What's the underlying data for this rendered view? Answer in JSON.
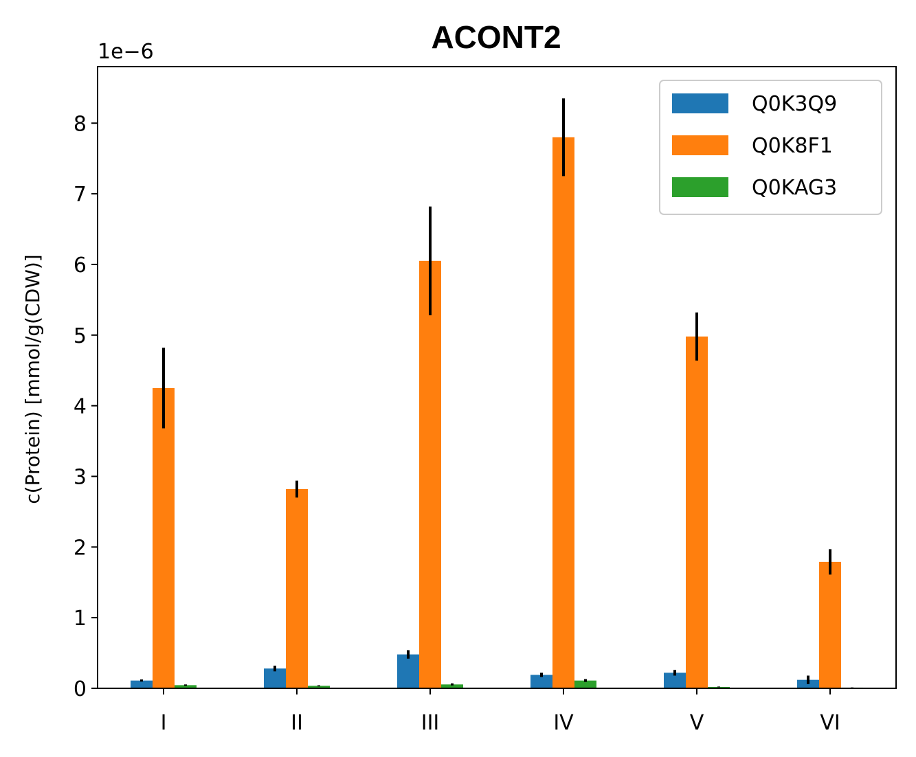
{
  "chart_data": {
    "type": "bar",
    "title": "ACONT2",
    "ylabel": "c(Protein) [mmol/g(CDW)]",
    "xlabel": "",
    "offset_label": "1e−6",
    "scale": 1e-06,
    "ylim": [
      0,
      8.8
    ],
    "yticks": [
      "0",
      "1",
      "2",
      "3",
      "4",
      "5",
      "6",
      "7",
      "8"
    ],
    "categories": [
      "I",
      "II",
      "III",
      "IV",
      "V",
      "VI"
    ],
    "legend_position": "top-right",
    "grid": false,
    "series": [
      {
        "name": "Q0K3Q9",
        "color": "#1f77b4",
        "values": [
          0.11,
          0.28,
          0.48,
          0.19,
          0.22,
          0.12
        ],
        "errors": [
          0.015,
          0.04,
          0.06,
          0.03,
          0.04,
          0.06
        ]
      },
      {
        "name": "Q0K8F1",
        "color": "#ff7f0e",
        "values": [
          4.25,
          2.82,
          6.05,
          7.8,
          4.98,
          1.79
        ],
        "errors": [
          0.57,
          0.12,
          0.77,
          0.55,
          0.34,
          0.18
        ]
      },
      {
        "name": "Q0KAG3",
        "color": "#2ca02c",
        "values": [
          0.045,
          0.035,
          0.055,
          0.11,
          0.02,
          0.01
        ],
        "errors": [
          0.01,
          0.008,
          0.015,
          0.02,
          0.005,
          0.003
        ]
      }
    ]
  }
}
